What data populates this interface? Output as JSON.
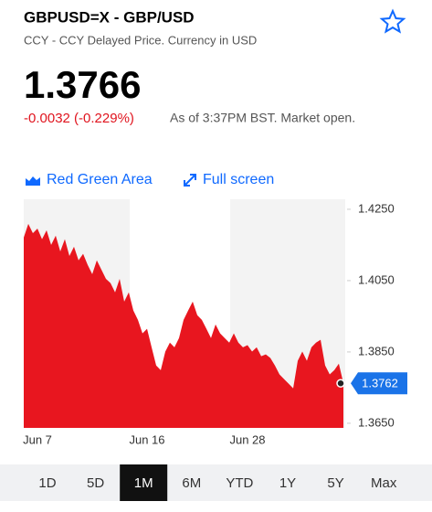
{
  "header": {
    "title": "GBPUSD=X - GBP/USD",
    "subtitle": "CCY - CCY Delayed Price. Currency in USD",
    "price": "1.3766",
    "change": "-0.0032 (-0.229%)",
    "status": "As of 3:37PM BST. Market open."
  },
  "controls": [
    "Red Green Area",
    "Full screen"
  ],
  "ranges": [
    {
      "label": "1D"
    },
    {
      "label": "5D"
    },
    {
      "label": "1M",
      "active": true
    },
    {
      "label": "6M"
    },
    {
      "label": "YTD"
    },
    {
      "label": "1Y"
    },
    {
      "label": "5Y"
    },
    {
      "label": "Max"
    }
  ],
  "chart_data": {
    "type": "area",
    "color": "#e8161f",
    "categories": [
      null,
      null,
      null,
      "Jun 7",
      null,
      null,
      null,
      null,
      null,
      null,
      null,
      null,
      null,
      null,
      null,
      null,
      null,
      null,
      null,
      null,
      null,
      null,
      null,
      null,
      null,
      null,
      null,
      "Jun 16",
      null,
      null,
      null,
      null,
      null,
      null,
      null,
      null,
      null,
      null,
      null,
      null,
      null,
      null,
      null,
      null,
      null,
      null,
      null,
      null,
      null,
      "Jun 28",
      null,
      null,
      null,
      null,
      null,
      null,
      null,
      null,
      null,
      null,
      null,
      null,
      null,
      null,
      null,
      null,
      null,
      null,
      null,
      null,
      null
    ],
    "values": [
      1.4171,
      1.4209,
      1.4183,
      1.4196,
      1.4166,
      1.4191,
      1.415,
      1.4176,
      1.4132,
      1.4166,
      1.4119,
      1.4145,
      1.4107,
      1.4125,
      1.4094,
      1.4068,
      1.4107,
      1.4081,
      1.4055,
      1.4043,
      1.4017,
      1.4055,
      1.3991,
      1.4017,
      1.3966,
      1.394,
      1.3902,
      1.3915,
      1.3863,
      1.3812,
      1.3799,
      1.3851,
      1.3876,
      1.3863,
      1.3889,
      1.394,
      1.3966,
      1.3991,
      1.3953,
      1.394,
      1.3915,
      1.3889,
      1.3927,
      1.3902,
      1.3889,
      1.3876,
      1.3902,
      1.3876,
      1.3863,
      1.3869,
      1.3851,
      1.3863,
      1.3838,
      1.3843,
      1.3833,
      1.3812,
      1.3787,
      1.3774,
      1.3761,
      1.3748,
      1.3825,
      1.3851,
      1.3825,
      1.3863,
      1.3876,
      1.3884,
      1.3812,
      1.3787,
      1.3799,
      1.3817,
      1.3762
    ],
    "current_value": 1.3762,
    "ylim": [
      1.3637,
      1.4278
    ],
    "yticks": [
      {
        "value": 1.425,
        "label": "1.4250"
      },
      {
        "value": 1.405,
        "label": "1.4050"
      },
      {
        "value": 1.385,
        "label": "1.3850"
      },
      {
        "value": 1.365,
        "label": "1.3650"
      }
    ]
  }
}
